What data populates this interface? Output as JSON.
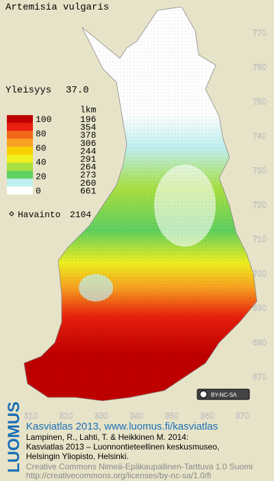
{
  "map": {
    "title": "Artemisia vulgaris",
    "frequency_label": "Yleisyys",
    "frequency_value": "37.0",
    "legend": {
      "count_header": "lkm",
      "scale_labels": [
        100,
        80,
        60,
        40,
        20,
        0
      ],
      "classes": [
        {
          "count": 196,
          "color": "#c00000"
        },
        {
          "count": 354,
          "color": "#e8200c"
        },
        {
          "count": 378,
          "color": "#f06818"
        },
        {
          "count": 306,
          "color": "#f8a020"
        },
        {
          "count": 244,
          "color": "#f8d000"
        },
        {
          "count": 291,
          "color": "#f0f020"
        },
        {
          "count": 264,
          "color": "#a8e040"
        },
        {
          "count": 273,
          "color": "#60d060"
        },
        {
          "count": 260,
          "color": "#c0f0f0"
        },
        {
          "count": 661,
          "color": "#ffffff"
        }
      ]
    },
    "observations_label": "Havainto",
    "observations_count": 2104,
    "yticks": [
      770,
      760,
      750,
      740,
      730,
      720,
      710,
      700,
      690,
      680,
      670
    ],
    "xticks": [
      310,
      320,
      330,
      340,
      350,
      360,
      370
    ],
    "license_badge": "BY-NC-SA"
  },
  "footer": {
    "brand": "LUOMUS",
    "headline": "Kasviatlas 2013, www.luomus.fi/kasviatlas",
    "citation": [
      "Lampinen, R., Lahti, T. & Heikkinen M. 2014:",
      "Kasviatlas 2013 – Luonnontieteellinen keskusmuseo,",
      "Helsingin Yliopisto, Helsinki."
    ],
    "license": [
      "Creative Commons Nimeä-Epäkaupallinen-Tarttuva 1.0 Suomi",
      "http://creativecommons.org/licenses/by-nc-sa/1.0/fi"
    ]
  }
}
